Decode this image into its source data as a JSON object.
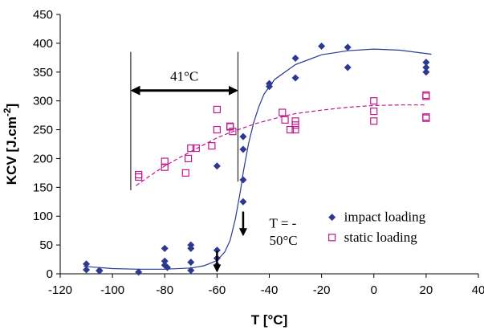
{
  "chart_data": {
    "type": "scatter",
    "xlabel": "T [°C]",
    "ylabel": "KCV [J.cm",
    "ylabel_sup": "-2",
    "ylabel_close": "]",
    "xlim": [
      -120,
      40
    ],
    "ylim": [
      0,
      450
    ],
    "x_ticks": [
      -120,
      -100,
      -80,
      -60,
      -40,
      -20,
      0,
      20,
      40
    ],
    "y_ticks": [
      0,
      50,
      100,
      150,
      200,
      250,
      300,
      350,
      400,
      450
    ],
    "grid": false,
    "legend_position": "bottom-right",
    "series": [
      {
        "name": "impact loading",
        "marker": "diamond-filled",
        "color": "#2b3990",
        "points": [
          [
            -110,
            17
          ],
          [
            -110,
            7
          ],
          [
            -105,
            5
          ],
          [
            -105,
            6
          ],
          [
            -90,
            3
          ],
          [
            -80,
            44
          ],
          [
            -80,
            22
          ],
          [
            -80,
            15
          ],
          [
            -79,
            11
          ],
          [
            -70,
            50
          ],
          [
            -70,
            44
          ],
          [
            -70,
            20
          ],
          [
            -70,
            6
          ],
          [
            -60,
            41
          ],
          [
            -60,
            27
          ],
          [
            -60,
            15
          ],
          [
            -60,
            187
          ],
          [
            -50,
            238
          ],
          [
            -50,
            216
          ],
          [
            -50,
            163
          ],
          [
            -50,
            125
          ],
          [
            -40,
            330
          ],
          [
            -40,
            325
          ],
          [
            -30,
            374
          ],
          [
            -30,
            340
          ],
          [
            -20,
            395
          ],
          [
            -10,
            393
          ],
          [
            -10,
            358
          ],
          [
            20,
            367
          ],
          [
            20,
            358
          ],
          [
            20,
            350
          ]
        ]
      },
      {
        "name": "static loading",
        "marker": "square-open",
        "color": "#c0188c",
        "points": [
          [
            -90,
            172
          ],
          [
            -90,
            168
          ],
          [
            -80,
            195
          ],
          [
            -80,
            185
          ],
          [
            -72,
            175
          ],
          [
            -71,
            200
          ],
          [
            -70,
            218
          ],
          [
            -68,
            218
          ],
          [
            -62,
            222
          ],
          [
            -60,
            285
          ],
          [
            -60,
            250
          ],
          [
            -55,
            256
          ],
          [
            -55,
            255
          ],
          [
            -54,
            247
          ],
          [
            -35,
            280
          ],
          [
            -34,
            267
          ],
          [
            -32,
            250
          ],
          [
            -30,
            265
          ],
          [
            -30,
            258
          ],
          [
            -30,
            250
          ],
          [
            0,
            300
          ],
          [
            0,
            282
          ],
          [
            0,
            265
          ],
          [
            20,
            310
          ],
          [
            20,
            308
          ],
          [
            20,
            272
          ],
          [
            20,
            270
          ]
        ]
      }
    ],
    "fit_curves": [
      {
        "series": "impact loading",
        "style": "solid",
        "color": "#2b3990",
        "points": [
          [
            -111,
            13
          ],
          [
            -100,
            9
          ],
          [
            -90,
            8
          ],
          [
            -80,
            8
          ],
          [
            -70,
            10
          ],
          [
            -65,
            14
          ],
          [
            -60,
            23
          ],
          [
            -57,
            38
          ],
          [
            -55,
            58
          ],
          [
            -53,
            95
          ],
          [
            -51,
            145
          ],
          [
            -50,
            175
          ],
          [
            -48,
            225
          ],
          [
            -46,
            262
          ],
          [
            -44,
            290
          ],
          [
            -42,
            312
          ],
          [
            -38,
            337
          ],
          [
            -30,
            363
          ],
          [
            -20,
            380
          ],
          [
            -10,
            387
          ],
          [
            0,
            390
          ],
          [
            10,
            388
          ],
          [
            22,
            381
          ]
        ]
      },
      {
        "series": "static loading",
        "style": "dashed",
        "color": "#c0188c",
        "points": [
          [
            -91,
            153
          ],
          [
            -85,
            172
          ],
          [
            -80,
            187
          ],
          [
            -75,
            200
          ],
          [
            -70,
            212
          ],
          [
            -65,
            224
          ],
          [
            -60,
            236
          ],
          [
            -55,
            245
          ],
          [
            -50,
            253
          ],
          [
            -45,
            261
          ],
          [
            -40,
            267
          ],
          [
            -35,
            273
          ],
          [
            -30,
            278
          ],
          [
            -20,
            284
          ],
          [
            -10,
            289
          ],
          [
            0,
            292
          ],
          [
            10,
            293
          ],
          [
            20,
            293
          ]
        ]
      }
    ],
    "annotations": {
      "delta_label": "41°C",
      "delta_from": -93,
      "delta_to": -52,
      "transition_label_line1": "T = -",
      "transition_label_line2": "50°C",
      "transition_arrow_x": -50,
      "impact_arrow_x": -60
    }
  }
}
